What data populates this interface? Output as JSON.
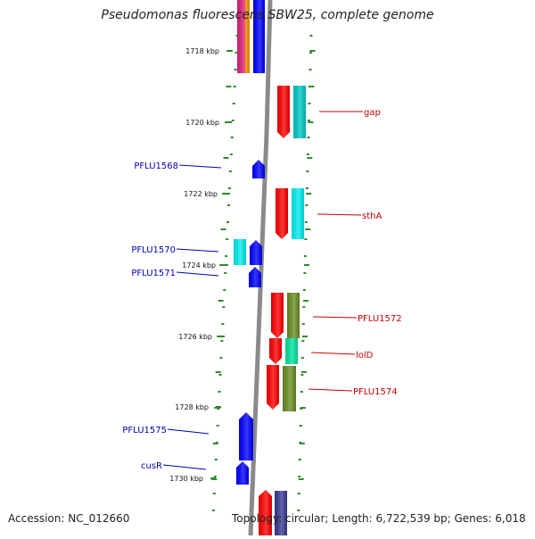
{
  "title": "Pseudomonas fluorescens SBW25, complete genome",
  "footer": {
    "accession": "Accession: NC_012660",
    "topology": "Topology: circular; Length: 6,722,539 bp; Genes: 6,018"
  },
  "ruler": [
    "1718 kbp",
    "1720 kbp",
    "1722 kbp",
    "1724 kbp",
    "1726 kbp",
    "1728 kbp",
    "1730 kbp"
  ],
  "genes_left": [
    "PFLU1568",
    "PFLU1570",
    "PFLU1571",
    "PFLU1575",
    "cusR"
  ],
  "genes_right": [
    "gap",
    "sthA",
    "PFLU1572",
    "lolD",
    "PFLU1574"
  ],
  "colors": {
    "backbone": "#8a8a8a",
    "tick": "#2e8b2e",
    "left_label": "#0000b4",
    "right_label": "#c80000",
    "blue": "#0000ff",
    "red": "#ff0000",
    "cyan": "#00e0e0",
    "olive": "#6b8e23",
    "aqua_green": "#00e5a0",
    "magenta": "#e0207a",
    "orange": "#ff9900",
    "slate": "#3a3a90"
  }
}
